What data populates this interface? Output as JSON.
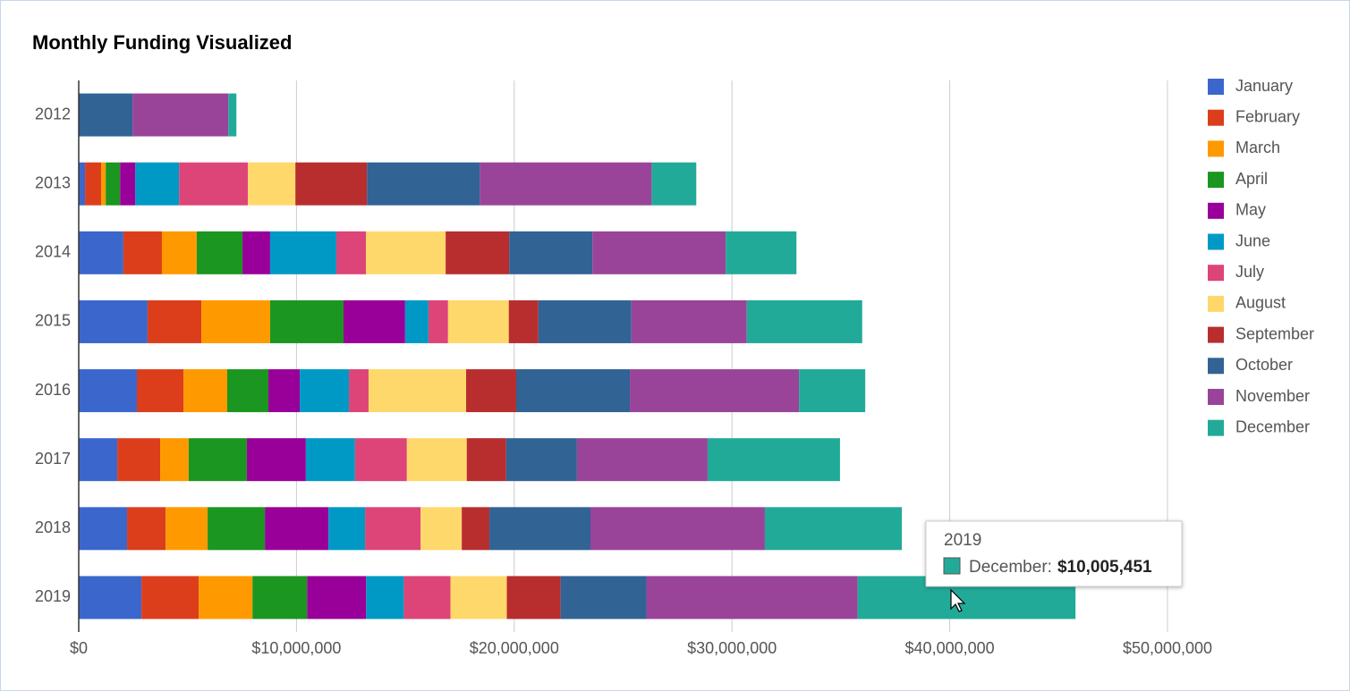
{
  "chart_data": {
    "type": "stacked-bar-horizontal",
    "title": "Monthly Funding Visualized",
    "categories": [
      "2012",
      "2013",
      "2014",
      "2015",
      "2016",
      "2017",
      "2018",
      "2019"
    ],
    "series": [
      {
        "name": "January",
        "color": "#3b67cc",
        "values": [
          0,
          290000,
          2050000,
          3160000,
          2670000,
          1770000,
          2220000,
          2880000
        ]
      },
      {
        "name": "February",
        "color": "#dc3e1c",
        "values": [
          0,
          740000,
          1770000,
          2470000,
          2140000,
          1970000,
          1770000,
          2630000
        ]
      },
      {
        "name": "March",
        "color": "#ff9900",
        "values": [
          0,
          210000,
          1600000,
          3160000,
          2010000,
          1310000,
          1930000,
          2470000
        ]
      },
      {
        "name": "April",
        "color": "#1b9620",
        "values": [
          0,
          660000,
          2100000,
          3370000,
          1890000,
          2670000,
          2630000,
          2510000
        ]
      },
      {
        "name": "May",
        "color": "#990099",
        "values": [
          0,
          700000,
          1270000,
          2830000,
          1440000,
          2710000,
          2920000,
          2710000
        ]
      },
      {
        "name": "June",
        "color": "#0099c6",
        "values": [
          0,
          2010000,
          3040000,
          1070000,
          2260000,
          2260000,
          1680000,
          1730000
        ]
      },
      {
        "name": "July",
        "color": "#dd4477",
        "values": [
          0,
          3160000,
          1360000,
          900000,
          900000,
          2380000,
          2550000,
          2140000
        ]
      },
      {
        "name": "August",
        "color": "#ffd86b",
        "values": [
          0,
          2180000,
          3660000,
          2790000,
          4480000,
          2750000,
          1890000,
          2590000
        ]
      },
      {
        "name": "September",
        "color": "#b82e2e",
        "values": [
          0,
          3290000,
          2920000,
          1360000,
          2300000,
          1810000,
          1270000,
          2470000
        ]
      },
      {
        "name": "October",
        "color": "#316395",
        "values": [
          2470000,
          5180000,
          3820000,
          4270000,
          5220000,
          3250000,
          4640000,
          3940000
        ]
      },
      {
        "name": "November",
        "color": "#994499",
        "values": [
          4400000,
          7890000,
          6120000,
          5300000,
          7770000,
          6000000,
          8010000,
          9700000
        ]
      },
      {
        "name": "December",
        "color": "#22aa99",
        "values": [
          370000,
          2050000,
          3250000,
          5300000,
          3040000,
          6080000,
          6290000,
          10005451
        ]
      }
    ],
    "xlim": [
      0,
      50000000
    ],
    "xticks": [
      {
        "value": 0,
        "label": "$0"
      },
      {
        "value": 10000000,
        "label": "$10,000,000"
      },
      {
        "value": 20000000,
        "label": "$20,000,000"
      },
      {
        "value": 30000000,
        "label": "$30,000,000"
      },
      {
        "value": 40000000,
        "label": "$40,000,000"
      },
      {
        "value": 50000000,
        "label": "$50,000,000"
      }
    ],
    "grid": true,
    "legend": "right",
    "tooltip": {
      "title": "2019",
      "series": "December",
      "value_label": "$10,005,451"
    }
  }
}
